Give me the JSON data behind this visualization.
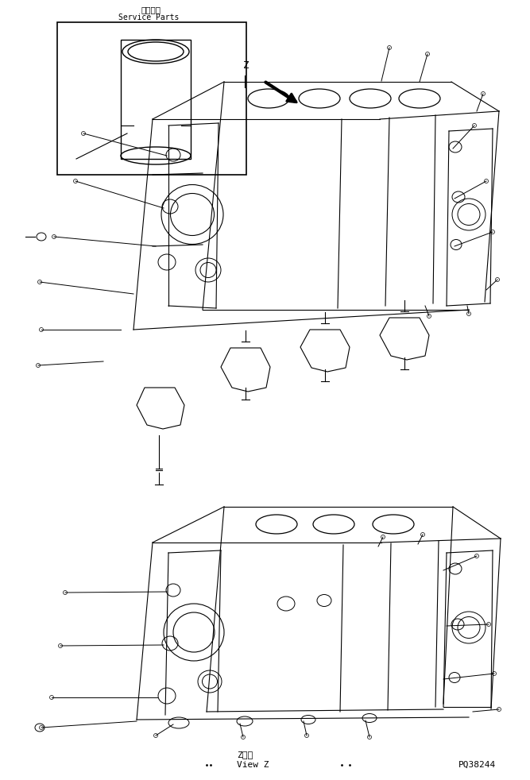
{
  "bg_color": "#ffffff",
  "line_color": "#000000",
  "title_jp": "補給専用",
  "title_en": "Service Parts",
  "bottom_label_jp": "Z　視",
  "bottom_label_en": "View Z",
  "part_number": "PQ38244",
  "fig_width": 6.67,
  "fig_height": 9.82,
  "dpi": 100
}
